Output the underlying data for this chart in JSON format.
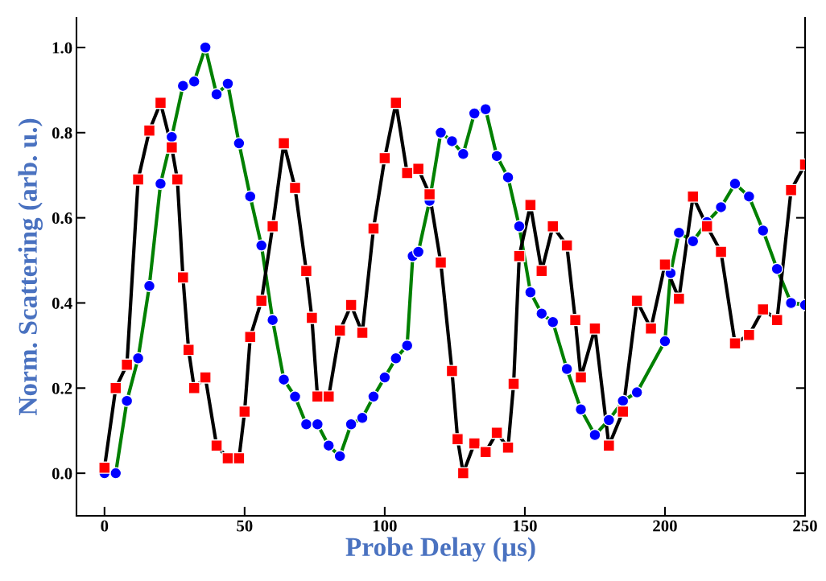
{
  "chart_data": {
    "type": "line",
    "xlabel": "Probe Delay (µs)",
    "ylabel": "Norm. Scattering (arb. u.)",
    "xlim": [
      -10,
      250
    ],
    "xticks": [
      0,
      50,
      100,
      150,
      200,
      250
    ],
    "ylim": [
      -0.1,
      1.07
    ],
    "yticks": [
      {
        "value": 0,
        "label": "0.0"
      },
      {
        "value": 0.2,
        "label": "0.2"
      },
      {
        "value": 0.4,
        "label": "0.4"
      },
      {
        "value": 0.6,
        "label": "0.6"
      },
      {
        "value": 0.8,
        "label": "0.8"
      },
      {
        "value": 1.0,
        "label": "1.0"
      }
    ],
    "grid": false,
    "line_style": "solid",
    "series": [
      {
        "color": "#0000ff",
        "marker": "circle",
        "x": [
          0,
          4,
          8,
          12,
          16,
          20,
          24,
          28,
          32,
          36,
          40,
          44,
          48,
          52,
          56,
          60,
          64,
          68,
          72,
          76,
          80,
          84,
          88,
          92,
          96,
          100,
          104,
          108,
          110,
          112,
          116,
          120,
          124,
          128,
          132,
          136,
          140,
          144,
          148,
          152,
          156,
          160,
          165,
          170,
          175,
          180,
          185,
          190,
          200,
          202,
          205,
          210,
          215,
          220,
          225,
          230,
          235,
          240,
          245,
          250
        ],
        "values": [
          0.0,
          0.0,
          0.17,
          0.27,
          0.44,
          0.68,
          0.79,
          0.91,
          0.92,
          1.0,
          0.89,
          0.915,
          0.775,
          0.65,
          0.535,
          0.36,
          0.22,
          0.18,
          0.115,
          0.115,
          0.065,
          0.04,
          0.115,
          0.13,
          0.18,
          0.225,
          0.27,
          0.3,
          0.51,
          0.52,
          0.64,
          0.8,
          0.78,
          0.75,
          0.845,
          0.855,
          0.745,
          0.695,
          0.58,
          0.425,
          0.375,
          0.355,
          0.245,
          0.15,
          0.09,
          0.125,
          0.17,
          0.19,
          0.31,
          0.47,
          0.565,
          0.545,
          0.59,
          0.625,
          0.68,
          0.65,
          0.57,
          0.48,
          0.4,
          0.395
        ]
      },
      {
        "color": "#ff0000",
        "marker": "square",
        "x": [
          0,
          4,
          8,
          12,
          16,
          20,
          24,
          26,
          28,
          30,
          32,
          36,
          40,
          44,
          48,
          50,
          52,
          56,
          60,
          64,
          68,
          72,
          74,
          76,
          80,
          84,
          88,
          92,
          96,
          100,
          104,
          108,
          112,
          116,
          120,
          124,
          126,
          128,
          132,
          136,
          140,
          144,
          146,
          148,
          152,
          156,
          160,
          165,
          168,
          170,
          175,
          180,
          185,
          190,
          195,
          200,
          205,
          210,
          215,
          220,
          225,
          230,
          235,
          240,
          245,
          250
        ],
        "values": [
          0.013,
          0.2,
          0.255,
          0.69,
          0.805,
          0.87,
          0.765,
          0.69,
          0.46,
          0.29,
          0.2,
          0.225,
          0.065,
          0.035,
          0.035,
          0.145,
          0.32,
          0.405,
          0.58,
          0.775,
          0.67,
          0.475,
          0.365,
          0.18,
          0.18,
          0.335,
          0.395,
          0.33,
          0.575,
          0.74,
          0.87,
          0.705,
          0.715,
          0.655,
          0.495,
          0.24,
          0.08,
          0.0,
          0.07,
          0.05,
          0.095,
          0.06,
          0.21,
          0.51,
          0.63,
          0.475,
          0.58,
          0.535,
          0.36,
          0.225,
          0.34,
          0.065,
          0.145,
          0.405,
          0.34,
          0.49,
          0.41,
          0.65,
          0.58,
          0.52,
          0.305,
          0.325,
          0.385,
          0.36,
          0.665,
          0.725
        ]
      }
    ]
  }
}
